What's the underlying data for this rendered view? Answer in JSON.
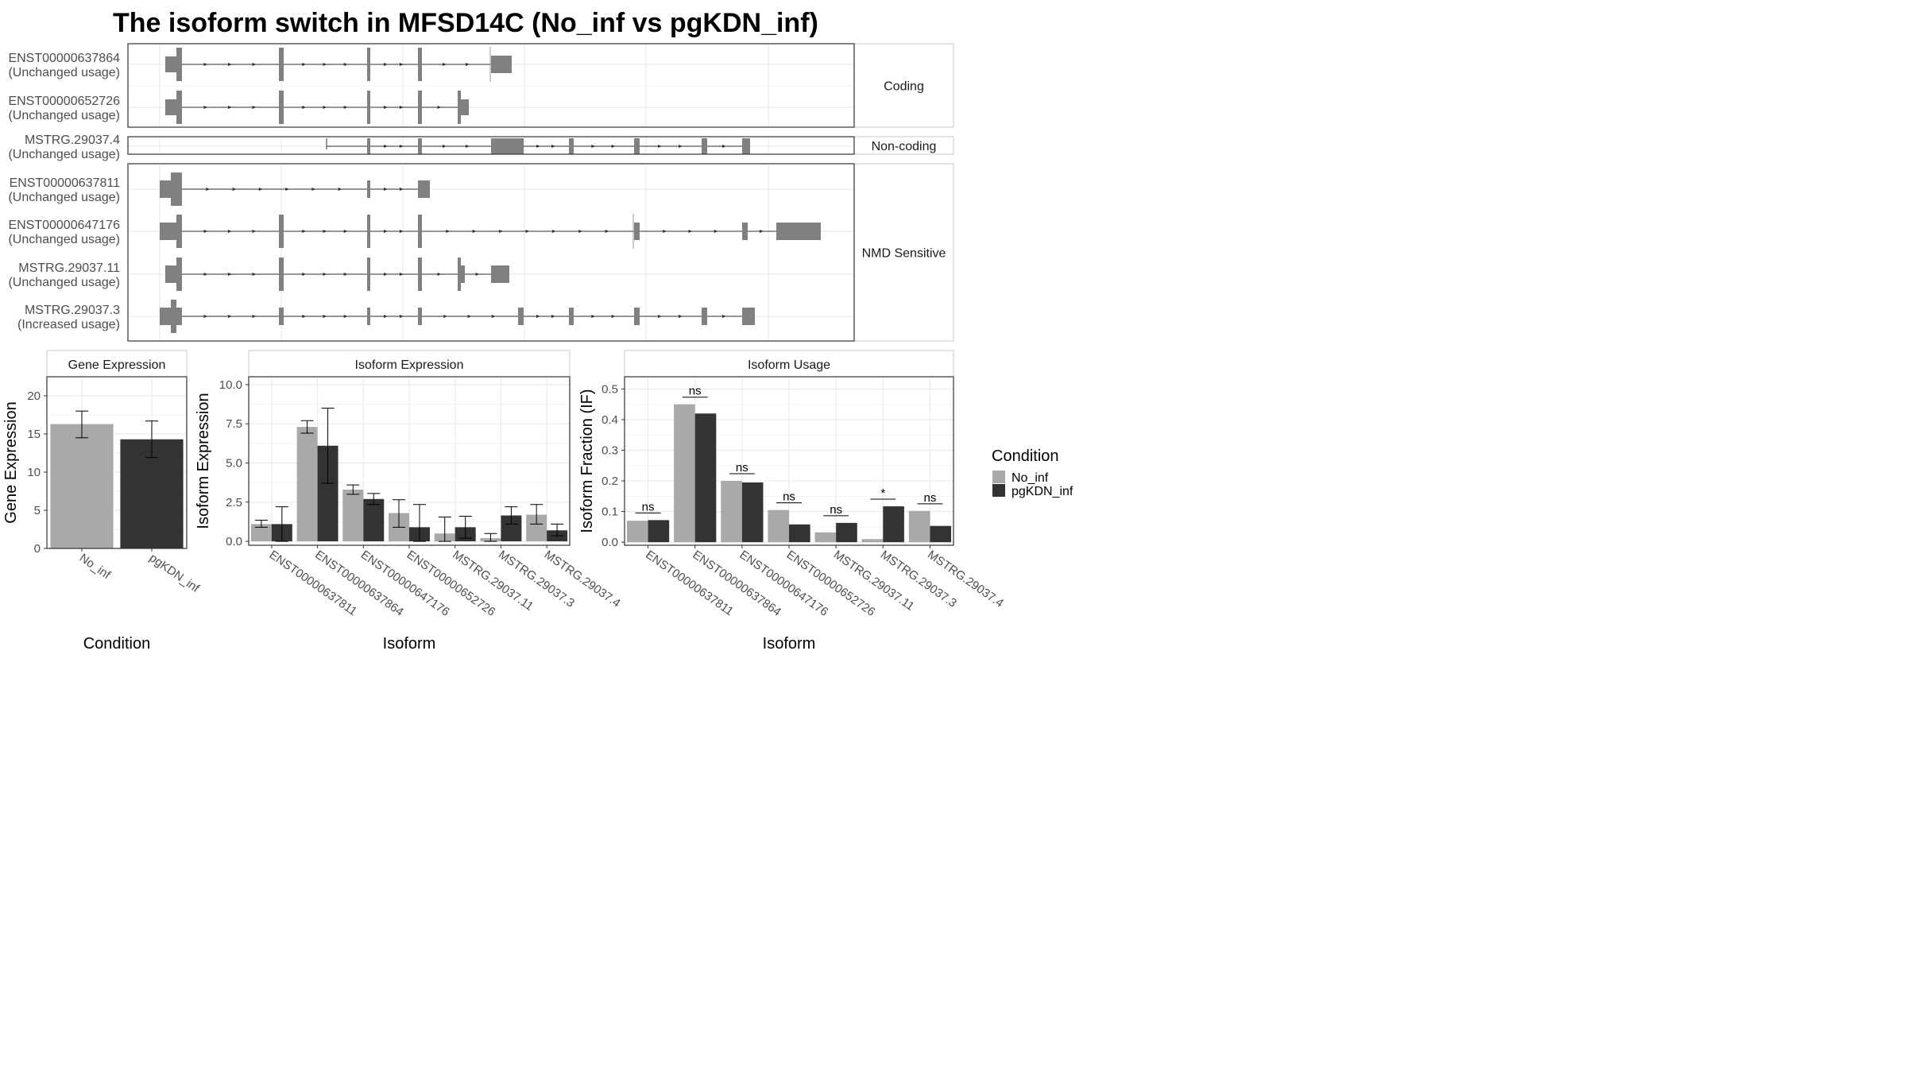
{
  "title": "The isoform switch in MFSD14C (No_inf vs pgKDN_inf)",
  "colors": {
    "no_inf": "#a9a9a9",
    "pgkdn_inf": "#333333",
    "exon": "#808080",
    "grid": "#ebebeb",
    "panel_border": "#333333",
    "strip_border": "#c8c8c8"
  },
  "structure": {
    "groups": [
      {
        "label": "Coding",
        "isoforms": [
          {
            "id": "ENST00000637864",
            "usage": "(Unchanged usage)"
          },
          {
            "id": "ENST00000652726",
            "usage": "(Unchanged usage)"
          }
        ]
      },
      {
        "label": "Non-coding",
        "isoforms": [
          {
            "id": "MSTRG.29037.4",
            "usage": "(Unchanged usage)"
          }
        ]
      },
      {
        "label": "NMD Sensitive",
        "isoforms": [
          {
            "id": "ENST00000637811",
            "usage": "(Unchanged usage)"
          },
          {
            "id": "ENST00000647176",
            "usage": "(Unchanged usage)"
          },
          {
            "id": "MSTRG.29037.11",
            "usage": "(Unchanged usage)"
          },
          {
            "id": "MSTRG.29037.3",
            "usage": "(Increased usage)"
          }
        ]
      }
    ]
  },
  "chart_data": [
    {
      "type": "bar",
      "title": "Gene Expression",
      "xlabel": "Condition",
      "ylabel": "Gene Expression",
      "categories": [
        "No_inf",
        "pgKDN_inf"
      ],
      "values": [
        16.3,
        14.3
      ],
      "error": [
        [
          14.5,
          18.0
        ],
        [
          11.9,
          16.7
        ]
      ],
      "ylim": [
        0,
        22.5
      ],
      "yticks": [
        "0",
        "5",
        "10",
        "15",
        "20"
      ]
    },
    {
      "type": "bar",
      "title": "Isoform Expression",
      "xlabel": "Isoform",
      "ylabel": "Isoform Expression",
      "categories": [
        "ENST00000637811",
        "ENST00000637864",
        "ENST00000647176",
        "ENST00000652726",
        "MSTRG.29037.11",
        "MSTRG.29037.3",
        "MSTRG.29037.4"
      ],
      "series": [
        {
          "name": "No_inf",
          "values": [
            1.1,
            7.3,
            3.3,
            1.8,
            0.5,
            0.2,
            1.7
          ],
          "error": [
            [
              0.9,
              1.35
            ],
            [
              6.9,
              7.7
            ],
            [
              3.0,
              3.6
            ],
            [
              0.9,
              2.65
            ],
            [
              0.0,
              1.55
            ],
            [
              0.0,
              0.5
            ],
            [
              1.1,
              2.35
            ]
          ]
        },
        {
          "name": "pgKDN_inf",
          "values": [
            1.1,
            6.1,
            2.7,
            0.9,
            0.9,
            1.65,
            0.7
          ],
          "error": [
            [
              0.0,
              2.2
            ],
            [
              3.7,
              8.5
            ],
            [
              2.35,
              3.05
            ],
            [
              0.0,
              2.35
            ],
            [
              0.2,
              1.6
            ],
            [
              1.1,
              2.2
            ],
            [
              0.35,
              1.1
            ]
          ]
        }
      ],
      "ylim": [
        -0.25,
        10.5
      ],
      "yticks": [
        "0.0",
        "2.5",
        "5.0",
        "7.5",
        "10.0"
      ]
    },
    {
      "type": "bar",
      "title": "Isoform Usage",
      "xlabel": "Isoform",
      "ylabel": "Isoform Fraction (IF)",
      "categories": [
        "ENST00000637811",
        "ENST00000637864",
        "ENST00000647176",
        "ENST00000652726",
        "MSTRG.29037.11",
        "MSTRG.29037.3",
        "MSTRG.29037.4"
      ],
      "series": [
        {
          "name": "No_inf",
          "values": [
            0.07,
            0.45,
            0.2,
            0.105,
            0.032,
            0.01,
            0.102
          ]
        },
        {
          "name": "pgKDN_inf",
          "values": [
            0.072,
            0.42,
            0.195,
            0.058,
            0.063,
            0.117,
            0.053
          ]
        }
      ],
      "significance": [
        "ns",
        "ns",
        "ns",
        "ns",
        "ns",
        "*",
        "ns"
      ],
      "ylim": [
        -0.01,
        0.54
      ],
      "yticks": [
        "0.0",
        "0.1",
        "0.2",
        "0.3",
        "0.4",
        "0.5"
      ]
    }
  ],
  "legend": {
    "title": "Condition",
    "entries": [
      "No_inf",
      "pgKDN_inf"
    ]
  }
}
